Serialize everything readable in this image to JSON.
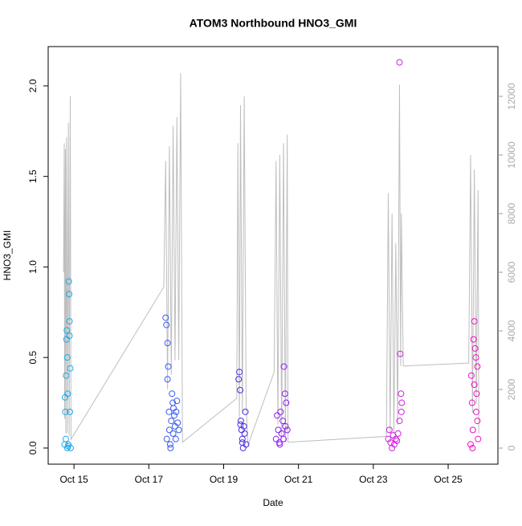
{
  "chart_data": {
    "type": "scatter",
    "title": "ATOM3 Northbound HNO3_GMI",
    "xlabel": "Date",
    "ylabel": "HNO3_GMI",
    "xlim": [
      14.31,
      26.33
    ],
    "ylim": [
      -0.089,
      2.217
    ],
    "y2lim": [
      -548,
      13700
    ],
    "xticks": [
      {
        "value": 15,
        "label": "Oct 15"
      },
      {
        "value": 17,
        "label": "Oct 17"
      },
      {
        "value": 19,
        "label": "Oct 19"
      },
      {
        "value": 21,
        "label": "Oct 21"
      },
      {
        "value": 23,
        "label": "Oct 23"
      },
      {
        "value": 25,
        "label": "Oct 25"
      }
    ],
    "yticks": [
      0.0,
      0.5,
      1.0,
      1.5,
      2.0
    ],
    "y2ticks": [
      0,
      2000,
      4000,
      6000,
      8000,
      10000,
      12000
    ],
    "series": [
      {
        "color": "#1fa8e8",
        "x": [
          14.75,
          14.76,
          14.77,
          14.78,
          14.79,
          14.8,
          14.81,
          14.82,
          14.83,
          14.84,
          14.85,
          14.86,
          14.87,
          14.88,
          14.89,
          14.9,
          14.91,
          14.88,
          14.82
        ],
        "values": [
          0.02,
          0.28,
          0.2,
          0.05,
          0.4,
          0.6,
          0.65,
          0.5,
          0.3,
          0.01,
          0.02,
          0.92,
          0.85,
          0.7,
          0.2,
          0.44,
          0.0,
          0.62,
          0.0
        ]
      },
      {
        "color": "#3b5cf0",
        "x": [
          17.45,
          17.47,
          17.48,
          17.5,
          17.52,
          17.54,
          17.55,
          17.57,
          17.6,
          17.62,
          17.64,
          17.66,
          17.68,
          17.7,
          17.72,
          17.75,
          17.77,
          17.8,
          17.5,
          17.58,
          17.65,
          17.73
        ],
        "values": [
          0.72,
          0.68,
          0.05,
          0.58,
          0.45,
          0.2,
          0.1,
          0.02,
          0.15,
          0.3,
          0.25,
          0.22,
          0.18,
          0.12,
          0.05,
          0.26,
          0.14,
          0.1,
          0.38,
          0.0,
          0.08,
          0.2
        ]
      },
      {
        "color": "#4a2ee0",
        "x": [
          19.4,
          19.42,
          19.44,
          19.46,
          19.48,
          19.5,
          19.52,
          19.54,
          19.56,
          19.58,
          19.6,
          19.45,
          19.5
        ],
        "values": [
          0.38,
          0.42,
          0.32,
          0.15,
          0.1,
          0.05,
          0.0,
          0.12,
          0.08,
          0.2,
          0.02,
          0.13,
          0.03
        ]
      },
      {
        "color": "#8a20e8",
        "x": [
          20.4,
          20.43,
          20.46,
          20.49,
          20.52,
          20.55,
          20.58,
          20.61,
          20.64,
          20.67,
          20.7,
          20.5,
          20.6,
          20.65
        ],
        "values": [
          0.05,
          0.18,
          0.1,
          0.03,
          0.2,
          0.08,
          0.15,
          0.45,
          0.3,
          0.25,
          0.1,
          0.02,
          0.05,
          0.12
        ]
      },
      {
        "color": "#d020e0",
        "x": [
          23.4,
          23.43,
          23.46,
          23.5,
          23.53,
          23.56,
          23.6,
          23.63,
          23.66,
          23.7,
          23.72,
          23.74,
          23.76,
          23.7,
          23.75
        ],
        "values": [
          0.05,
          0.1,
          0.03,
          0.0,
          0.07,
          0.02,
          0.05,
          0.04,
          0.08,
          2.13,
          0.52,
          0.3,
          0.25,
          0.15,
          0.2
        ]
      },
      {
        "color": "#f010c8",
        "x": [
          25.6,
          25.62,
          25.64,
          25.66,
          25.68,
          25.7,
          25.72,
          25.74,
          25.76,
          25.78,
          25.8,
          25.65,
          25.7,
          25.75,
          25.78
        ],
        "values": [
          0.02,
          0.4,
          0.25,
          0.1,
          0.6,
          0.7,
          0.55,
          0.5,
          0.3,
          0.15,
          0.05,
          0.0,
          0.35,
          0.2,
          0.45
        ]
      },
      {
        "color": "#bebebe",
        "axis": "y2",
        "x": [
          14.72,
          14.74,
          14.75,
          14.77,
          14.78,
          14.8,
          14.82,
          14.85,
          14.87,
          14.9,
          14.92,
          17.4,
          17.45,
          17.5,
          17.55,
          17.6,
          17.65,
          17.7,
          17.75,
          17.8,
          17.85,
          17.9,
          19.35,
          19.38,
          19.42,
          19.45,
          19.5,
          19.55,
          19.6,
          19.65,
          20.35,
          20.4,
          20.45,
          20.5,
          20.55,
          20.6,
          20.65,
          20.7,
          20.72,
          23.35,
          23.4,
          23.45,
          23.5,
          23.55,
          23.6,
          23.65,
          23.7,
          23.73,
          23.75,
          23.8,
          25.55,
          25.6,
          25.65,
          25.7,
          25.75,
          25.8,
          25.82
        ],
        "values": [
          6000,
          10400,
          1000,
          10200,
          500,
          10600,
          500,
          11100,
          400,
          12000,
          300,
          5500,
          9800,
          2000,
          10300,
          2500,
          11000,
          3000,
          11300,
          3000,
          12800,
          200,
          1700,
          10400,
          1000,
          11700,
          1200,
          12000,
          1500,
          100,
          2600,
          9800,
          800,
          10000,
          300,
          10400,
          200,
          10700,
          200,
          400,
          8700,
          500,
          8000,
          500,
          7000,
          800,
          12400,
          2800,
          8000,
          2800,
          2900,
          10000,
          1200,
          9500,
          1500,
          8800,
          500
        ]
      }
    ]
  }
}
